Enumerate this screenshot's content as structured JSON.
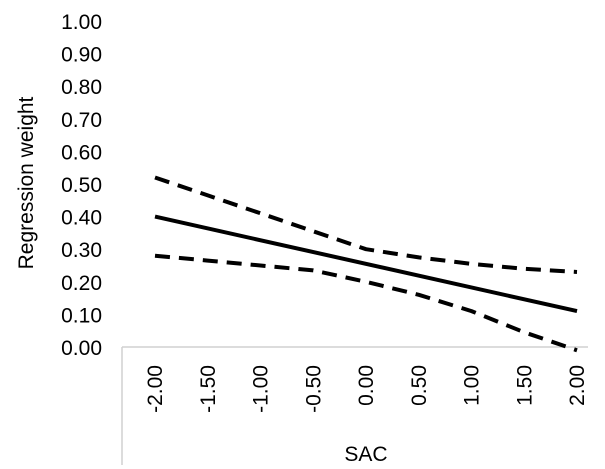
{
  "chart_data": {
    "type": "line",
    "title": "",
    "xlabel": "SAC",
    "ylabel": "Regression weight",
    "x": [
      -2.0,
      2.0
    ],
    "x_ticks": [
      "-2.00",
      "-1.50",
      "-1.00",
      "-0.50",
      "0.00",
      "0.50",
      "1.00",
      "1.50",
      "2.00"
    ],
    "y_ticks": [
      "0.00",
      "0.10",
      "0.20",
      "0.30",
      "0.40",
      "0.50",
      "0.60",
      "0.70",
      "0.80",
      "0.90",
      "1.00"
    ],
    "xlim": [
      -2.0,
      2.0
    ],
    "ylim": [
      0.0,
      1.0
    ],
    "grid": false,
    "legend": "none",
    "series": [
      {
        "style": "solid",
        "points": [
          [
            -2.0,
            0.4
          ],
          [
            2.0,
            0.11
          ]
        ]
      },
      {
        "style": "dashed",
        "points": [
          [
            -2.0,
            0.52
          ],
          [
            -1.5,
            0.465
          ],
          [
            -1.0,
            0.41
          ],
          [
            -0.5,
            0.355
          ],
          [
            0.0,
            0.3
          ],
          [
            0.5,
            0.275
          ],
          [
            1.0,
            0.255
          ],
          [
            1.5,
            0.24
          ],
          [
            2.0,
            0.23
          ]
        ]
      },
      {
        "style": "dashed",
        "points": [
          [
            -2.0,
            0.28
          ],
          [
            -1.5,
            0.265
          ],
          [
            -1.0,
            0.25
          ],
          [
            -0.5,
            0.235
          ],
          [
            0.0,
            0.2
          ],
          [
            0.5,
            0.16
          ],
          [
            1.0,
            0.11
          ],
          [
            1.5,
            0.045
          ],
          [
            2.0,
            -0.01
          ]
        ]
      }
    ],
    "colors": {
      "line": "#000000",
      "axis": "#d0d0d0"
    }
  }
}
